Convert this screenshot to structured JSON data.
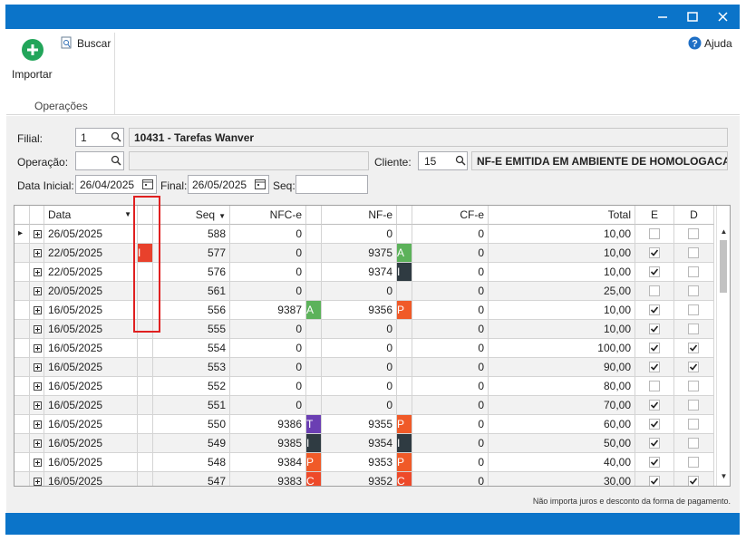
{
  "toolbar": {
    "import": "Importar",
    "search": "Buscar",
    "group": "Operações",
    "help": "Ajuda"
  },
  "filters": {
    "filial_label": "Filial:",
    "filial": "1",
    "filial_name": "10431 - Tarefas Wanver",
    "operacao_label": "Operação:",
    "cliente_label": "Cliente:",
    "cliente": "15",
    "cliente_name": "NF-E EMITIDA EM AMBIENTE DE HOMOLOGACAO",
    "data_inicial_label": "Data Inicial:",
    "data_inicial": "26/04/2025",
    "final_label": "Final:",
    "final": "26/05/2025",
    "seq_label": "Seq:"
  },
  "grid": {
    "columns": [
      "Data",
      "Seq",
      "NFC-e",
      "NF-e",
      "CF-e",
      "Total",
      "E",
      "D"
    ],
    "rows": [
      {
        "date": "26/05/2025",
        "seq": 588,
        "nfce": 0,
        "nfe": 0,
        "cfe": 0,
        "total": "10,00",
        "e": false,
        "d": false
      },
      {
        "date": "22/05/2025",
        "status": {
          "text": "I",
          "color": "#e8412c"
        },
        "seq": 577,
        "nfce": 0,
        "nfe": 9375,
        "nfe_badge": {
          "text": "A",
          "color": "#5cb25a"
        },
        "cfe": 0,
        "total": "10,00",
        "e": true,
        "d": false
      },
      {
        "date": "22/05/2025",
        "seq": 576,
        "nfce": 0,
        "nfe": 9374,
        "nfe_badge": {
          "text": "I",
          "color": "#2f3b42"
        },
        "cfe": 0,
        "total": "10,00",
        "e": true,
        "d": false
      },
      {
        "date": "20/05/2025",
        "seq": 561,
        "nfce": 0,
        "nfe": 0,
        "cfe": 0,
        "total": "25,00",
        "e": false,
        "d": false
      },
      {
        "date": "16/05/2025",
        "seq": 556,
        "nfce": 9387,
        "nfce_badge": {
          "text": "A",
          "color": "#5cb25a"
        },
        "nfe": 9356,
        "nfe_badge": {
          "text": "P",
          "color": "#f05a28"
        },
        "cfe": 0,
        "total": "10,00",
        "e": true,
        "d": false
      },
      {
        "date": "16/05/2025",
        "seq": 555,
        "nfce": 0,
        "nfe": 0,
        "cfe": 0,
        "total": "10,00",
        "e": true,
        "d": false
      },
      {
        "date": "16/05/2025",
        "seq": 554,
        "nfce": 0,
        "nfe": 0,
        "cfe": 0,
        "total": "100,00",
        "e": true,
        "d": true
      },
      {
        "date": "16/05/2025",
        "seq": 553,
        "nfce": 0,
        "nfe": 0,
        "cfe": 0,
        "total": "90,00",
        "e": true,
        "d": true
      },
      {
        "date": "16/05/2025",
        "seq": 552,
        "nfce": 0,
        "nfe": 0,
        "cfe": 0,
        "total": "80,00",
        "e": false,
        "d": false
      },
      {
        "date": "16/05/2025",
        "seq": 551,
        "nfce": 0,
        "nfe": 0,
        "cfe": 0,
        "total": "70,00",
        "e": true,
        "d": false
      },
      {
        "date": "16/05/2025",
        "seq": 550,
        "nfce": 9386,
        "nfce_badge": {
          "text": "T",
          "color": "#6b3fb3"
        },
        "nfe": 9355,
        "nfe_badge": {
          "text": "P",
          "color": "#f05a28"
        },
        "cfe": 0,
        "total": "60,00",
        "e": true,
        "d": false
      },
      {
        "date": "16/05/2025",
        "seq": 549,
        "nfce": 9385,
        "nfce_badge": {
          "text": "I",
          "color": "#2f3b42"
        },
        "nfe": 9354,
        "nfe_badge": {
          "text": "I",
          "color": "#2f3b42"
        },
        "cfe": 0,
        "total": "50,00",
        "e": true,
        "d": false
      },
      {
        "date": "16/05/2025",
        "seq": 548,
        "nfce": 9384,
        "nfce_badge": {
          "text": "P",
          "color": "#f05a28"
        },
        "nfe": 9353,
        "nfe_badge": {
          "text": "P",
          "color": "#f05a28"
        },
        "cfe": 0,
        "total": "40,00",
        "e": true,
        "d": false
      },
      {
        "date": "16/05/2025",
        "seq": 547,
        "nfce": 9383,
        "nfce_badge": {
          "text": "C",
          "color": "#ee4a2a"
        },
        "nfe": 9352,
        "nfe_badge": {
          "text": "C",
          "color": "#ee4a2a"
        },
        "cfe": 0,
        "total": "30,00",
        "e": true,
        "d": true
      }
    ]
  },
  "note": "Não importa juros e desconto da forma de pagamento."
}
